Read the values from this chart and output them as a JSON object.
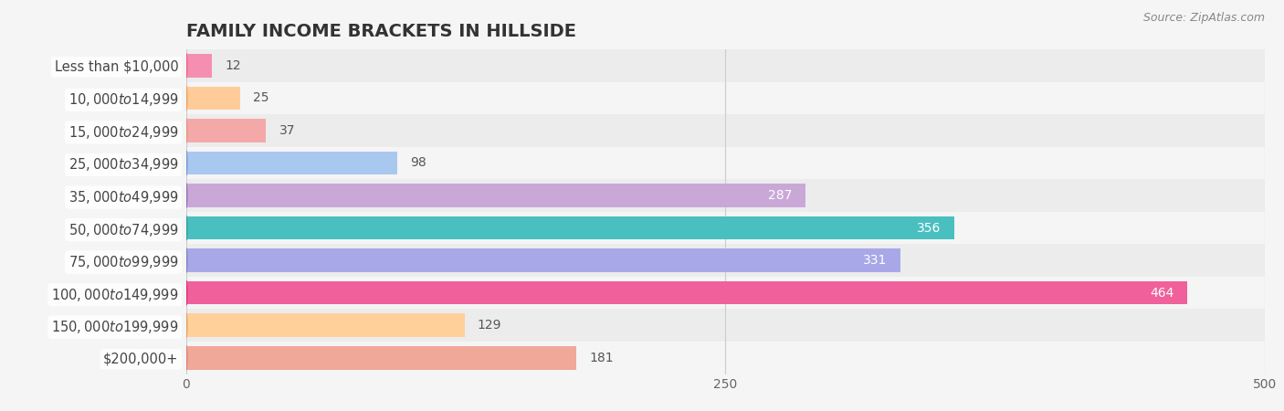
{
  "title": "FAMILY INCOME BRACKETS IN HILLSIDE",
  "source": "Source: ZipAtlas.com",
  "categories": [
    "Less than $10,000",
    "$10,000 to $14,999",
    "$15,000 to $24,999",
    "$25,000 to $34,999",
    "$35,000 to $49,999",
    "$50,000 to $74,999",
    "$75,000 to $99,999",
    "$100,000 to $149,999",
    "$150,000 to $199,999",
    "$200,000+"
  ],
  "values": [
    12,
    25,
    37,
    98,
    287,
    356,
    331,
    464,
    129,
    181
  ],
  "bar_colors": [
    "#f48fb1",
    "#ffcc99",
    "#f4a9a8",
    "#a8c8f0",
    "#c9a8d8",
    "#4abfbf",
    "#a8a8e8",
    "#f0609a",
    "#ffd09a",
    "#f0a898"
  ],
  "label_circle_colors": [
    "#f06080",
    "#e8a060",
    "#e89080",
    "#8090d0",
    "#9070b8",
    "#30a0a0",
    "#8080c8",
    "#e03070",
    "#e0a060",
    "#e08070"
  ],
  "row_colors": [
    "#ececec",
    "#f5f5f5"
  ],
  "background_color": "#f5f5f5",
  "xlim": [
    0,
    500
  ],
  "xticks": [
    0,
    250,
    500
  ],
  "title_fontsize": 14,
  "label_fontsize": 10.5,
  "value_fontsize": 10,
  "source_fontsize": 9,
  "value_white_threshold": 200
}
